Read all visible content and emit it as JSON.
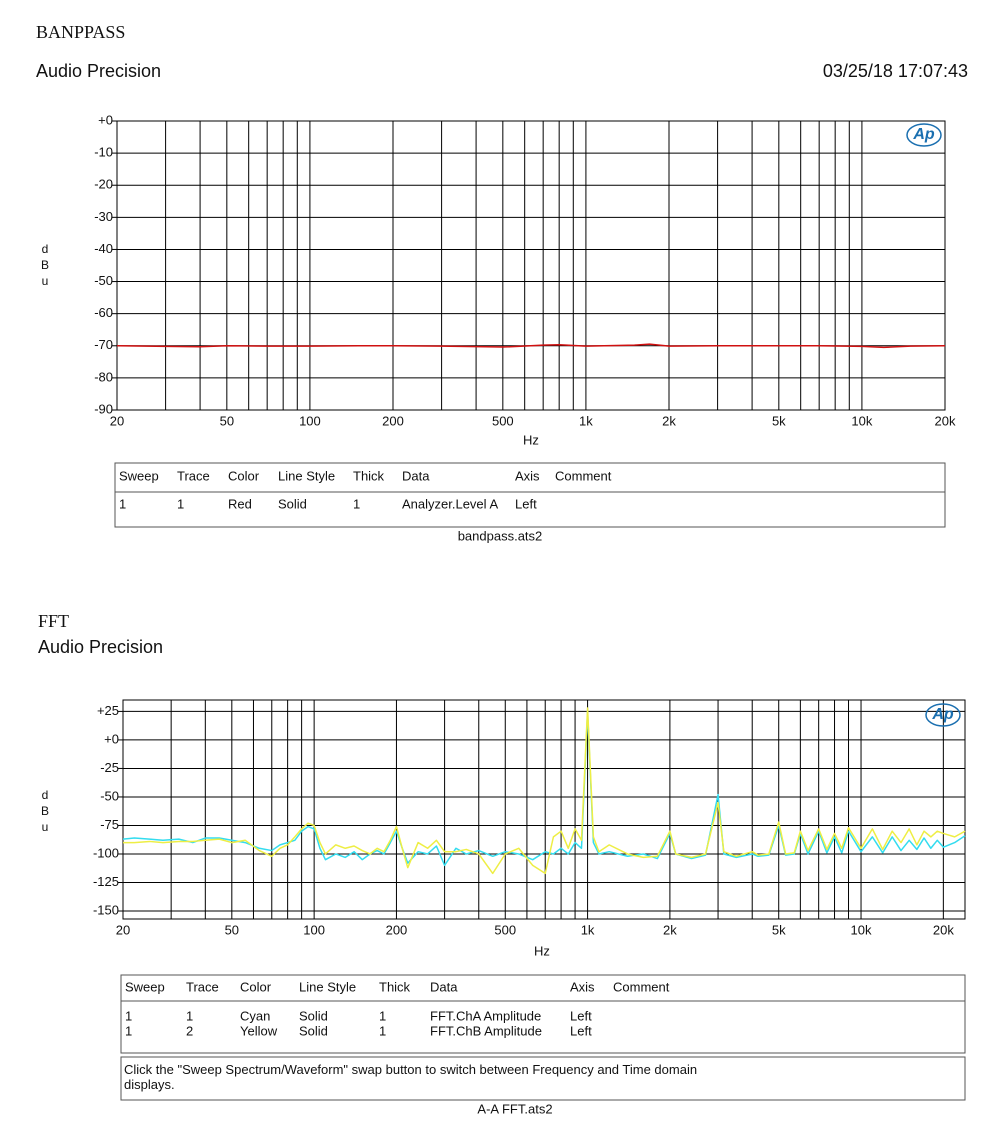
{
  "chart_data": [
    {
      "type": "line",
      "title": "BANPPASS",
      "subtitle": "Audio Precision",
      "timestamp": "03/25/18 17:07:43",
      "logo": "Ap",
      "ylabel": "dBu",
      "xlabel": "Hz",
      "xscale": "log",
      "grid": true,
      "xlim": [
        20,
        20000
      ],
      "ylim": [
        -90,
        0
      ],
      "xticks": [
        20,
        50,
        100,
        200,
        500,
        {
          "value": 1000,
          "label": "1k"
        },
        {
          "value": 2000,
          "label": "2k"
        },
        {
          "value": 5000,
          "label": "5k"
        },
        {
          "value": 10000,
          "label": "10k"
        },
        {
          "value": 20000,
          "label": "20k"
        }
      ],
      "x_minor_ticks": [
        30,
        40,
        60,
        70,
        80,
        90,
        300,
        400,
        600,
        700,
        800,
        900,
        3000,
        4000,
        6000,
        7000,
        8000,
        9000
      ],
      "yticks": [
        {
          "value": 0,
          "label": "+0"
        },
        -10,
        -20,
        -30,
        -40,
        -50,
        -60,
        -70,
        -80,
        -90
      ],
      "x": [
        20,
        30,
        40,
        50,
        70,
        100,
        150,
        200,
        300,
        500,
        700,
        800,
        1000,
        1500,
        1700,
        2000,
        3000,
        5000,
        7000,
        10000,
        12000,
        15000,
        20000
      ],
      "series": [
        {
          "color": "#d01010",
          "values": [
            -70,
            -70.2,
            -70.3,
            -70,
            -70.1,
            -70.1,
            -70,
            -70,
            -70.1,
            -70.4,
            -69.8,
            -69.7,
            -70.1,
            -69.8,
            -69.5,
            -70.1,
            -70,
            -70,
            -70,
            -70.2,
            -70.5,
            -70.1,
            -70
          ]
        }
      ],
      "table": {
        "columns": [
          "Sweep",
          "Trace",
          "Color",
          "Line Style",
          "Thick",
          "Data",
          "Axis",
          "Comment"
        ],
        "rows": [
          [
            1,
            1,
            "Red",
            "Solid",
            1,
            "Analyzer.Level A",
            "Left"
          ]
        ],
        "file": "bandpass.ats2"
      }
    },
    {
      "type": "line",
      "title": "FFT",
      "subtitle": "Audio Precision",
      "logo": "Ap",
      "ylabel": "dBu",
      "xlabel": "Hz",
      "xscale": "log",
      "grid": true,
      "xlim": [
        20,
        24000
      ],
      "ylim": [
        -157,
        35
      ],
      "xticks": [
        20,
        50,
        100,
        200,
        500,
        {
          "value": 1000,
          "label": "1k"
        },
        {
          "value": 2000,
          "label": "2k"
        },
        {
          "value": 5000,
          "label": "5k"
        },
        {
          "value": 10000,
          "label": "10k"
        },
        {
          "value": 20000,
          "label": "20k"
        }
      ],
      "x_minor_ticks": [
        30,
        40,
        60,
        70,
        80,
        90,
        300,
        400,
        600,
        700,
        800,
        900,
        3000,
        4000,
        6000,
        7000,
        8000,
        9000
      ],
      "yticks": [
        {
          "value": 25,
          "label": "+25"
        },
        {
          "value": 0,
          "label": "+0"
        },
        -25,
        -50,
        -75,
        -100,
        -125,
        -150
      ],
      "x": [
        20,
        22,
        25,
        28,
        32,
        36,
        40,
        45,
        50,
        56,
        63,
        70,
        75,
        80,
        85,
        90,
        95,
        100,
        105,
        110,
        120,
        130,
        140,
        150,
        160,
        170,
        180,
        190,
        200,
        210,
        220,
        240,
        260,
        280,
        300,
        330,
        360,
        400,
        450,
        500,
        560,
        630,
        700,
        750,
        800,
        850,
        900,
        950,
        1000,
        1050,
        1100,
        1200,
        1400,
        1600,
        1800,
        2000,
        2100,
        2400,
        2700,
        3000,
        3150,
        3500,
        4000,
        4200,
        4600,
        5000,
        5300,
        5700,
        6000,
        6400,
        7000,
        7500,
        8000,
        8500,
        9000,
        10000,
        11000,
        12000,
        13000,
        14000,
        15000,
        16000,
        17000,
        18000,
        19000,
        20000,
        22000,
        24000
      ],
      "series": [
        {
          "color": "#33dcef",
          "values": [
            -87,
            -86,
            -87,
            -88,
            -87,
            -90,
            -86,
            -86,
            -88,
            -90,
            -95,
            -97,
            -92,
            -90,
            -88,
            -80,
            -76,
            -78,
            -95,
            -105,
            -100,
            -103,
            -98,
            -105,
            -100,
            -97,
            -100,
            -90,
            -80,
            -95,
            -108,
            -98,
            -100,
            -93,
            -110,
            -95,
            -100,
            -97,
            -102,
            -98,
            -100,
            -105,
            -98,
            -100,
            -95,
            -100,
            -90,
            -95,
            25,
            -90,
            -100,
            -98,
            -102,
            -100,
            -104,
            -82,
            -100,
            -104,
            -101,
            -48,
            -100,
            -103,
            -100,
            -102,
            -101,
            -75,
            -101,
            -100,
            -82,
            -100,
            -80,
            -99,
            -85,
            -99,
            -80,
            -98,
            -85,
            -99,
            -85,
            -97,
            -88,
            -96,
            -86,
            -95,
            -88,
            -94,
            -90,
            -84
          ]
        },
        {
          "color": "#eeee44",
          "values": [
            -90,
            -90,
            -89,
            -90,
            -89,
            -89,
            -88,
            -87,
            -90,
            -88,
            -97,
            -102,
            -95,
            -92,
            -85,
            -78,
            -73,
            -75,
            -90,
            -100,
            -92,
            -95,
            -93,
            -97,
            -100,
            -95,
            -98,
            -88,
            -76,
            -95,
            -112,
            -90,
            -95,
            -88,
            -98,
            -98,
            -96,
            -100,
            -117,
            -100,
            -95,
            -110,
            -117,
            -85,
            -80,
            -95,
            -78,
            -88,
            28,
            -85,
            -98,
            -92,
            -100,
            -103,
            -102,
            -80,
            -100,
            -103,
            -100,
            -55,
            -98,
            -102,
            -98,
            -101,
            -100,
            -72,
            -100,
            -99,
            -80,
            -97,
            -78,
            -96,
            -82,
            -95,
            -77,
            -95,
            -78,
            -96,
            -80,
            -90,
            -78,
            -92,
            -80,
            -85,
            -80,
            -82,
            -85,
            -80
          ]
        }
      ],
      "table": {
        "columns": [
          "Sweep",
          "Trace",
          "Color",
          "Line Style",
          "Thick",
          "Data",
          "Axis",
          "Comment"
        ],
        "rows": [
          [
            1,
            1,
            "Cyan",
            "Solid",
            1,
            "FFT.ChA Amplitude",
            "Left"
          ],
          [
            1,
            2,
            "Yellow",
            "Solid",
            1,
            "FFT.ChB Amplitude",
            "Left"
          ]
        ],
        "note": "Click the \"Sweep Spectrum/Waveform\" swap button to switch between Frequency and Time domain displays.",
        "file": "A-A FFT.ats2"
      }
    }
  ]
}
